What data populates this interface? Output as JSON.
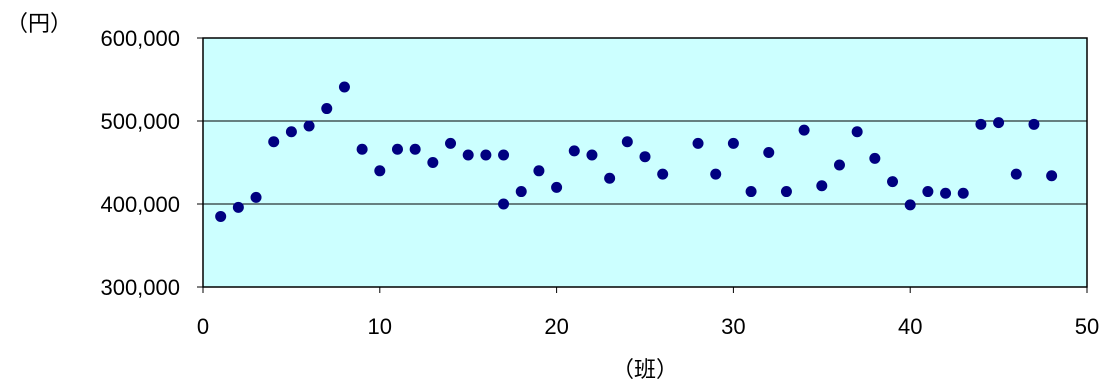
{
  "chart_data": {
    "type": "scatter",
    "ylabel": "（円）",
    "xlabel": "（班）",
    "xlim": [
      0,
      50
    ],
    "ylim": [
      300000,
      600000
    ],
    "x_ticks": [
      0,
      10,
      20,
      30,
      40,
      50
    ],
    "y_ticks": [
      300000,
      400000,
      500000,
      600000
    ],
    "x_tick_labels": [
      "0",
      "10",
      "20",
      "30",
      "40",
      "50"
    ],
    "y_tick_labels": [
      "300,000",
      "400,000",
      "500,000",
      "600,000"
    ],
    "grid": "horizontal",
    "plot_background": "#ccffff",
    "marker_color": "#000080",
    "points": [
      {
        "x": 1,
        "y": 385000
      },
      {
        "x": 2,
        "y": 396000
      },
      {
        "x": 3,
        "y": 408000
      },
      {
        "x": 4,
        "y": 475000
      },
      {
        "x": 5,
        "y": 487000
      },
      {
        "x": 6,
        "y": 494000
      },
      {
        "x": 7,
        "y": 515000
      },
      {
        "x": 8,
        "y": 541000
      },
      {
        "x": 9,
        "y": 466000
      },
      {
        "x": 10,
        "y": 440000
      },
      {
        "x": 11,
        "y": 466000
      },
      {
        "x": 12,
        "y": 466000
      },
      {
        "x": 13,
        "y": 450000
      },
      {
        "x": 14,
        "y": 473000
      },
      {
        "x": 15,
        "y": 459000
      },
      {
        "x": 16,
        "y": 459000
      },
      {
        "x": 17,
        "y": 459000
      },
      {
        "x": 17,
        "y": 400000
      },
      {
        "x": 18,
        "y": 415000
      },
      {
        "x": 19,
        "y": 440000
      },
      {
        "x": 20,
        "y": 420000
      },
      {
        "x": 21,
        "y": 464000
      },
      {
        "x": 22,
        "y": 459000
      },
      {
        "x": 23,
        "y": 431000
      },
      {
        "x": 24,
        "y": 475000
      },
      {
        "x": 25,
        "y": 457000
      },
      {
        "x": 26,
        "y": 436000
      },
      {
        "x": 28,
        "y": 473000
      },
      {
        "x": 29,
        "y": 436000
      },
      {
        "x": 30,
        "y": 473000
      },
      {
        "x": 31,
        "y": 415000
      },
      {
        "x": 32,
        "y": 462000
      },
      {
        "x": 33,
        "y": 415000
      },
      {
        "x": 34,
        "y": 489000
      },
      {
        "x": 35,
        "y": 422000
      },
      {
        "x": 36,
        "y": 447000
      },
      {
        "x": 37,
        "y": 487000
      },
      {
        "x": 38,
        "y": 455000
      },
      {
        "x": 39,
        "y": 427000
      },
      {
        "x": 40,
        "y": 399000
      },
      {
        "x": 41,
        "y": 415000
      },
      {
        "x": 42,
        "y": 413000
      },
      {
        "x": 43,
        "y": 413000
      },
      {
        "x": 44,
        "y": 496000
      },
      {
        "x": 45,
        "y": 498000
      },
      {
        "x": 46,
        "y": 436000
      },
      {
        "x": 47,
        "y": 496000
      },
      {
        "x": 48,
        "y": 434000
      }
    ]
  }
}
